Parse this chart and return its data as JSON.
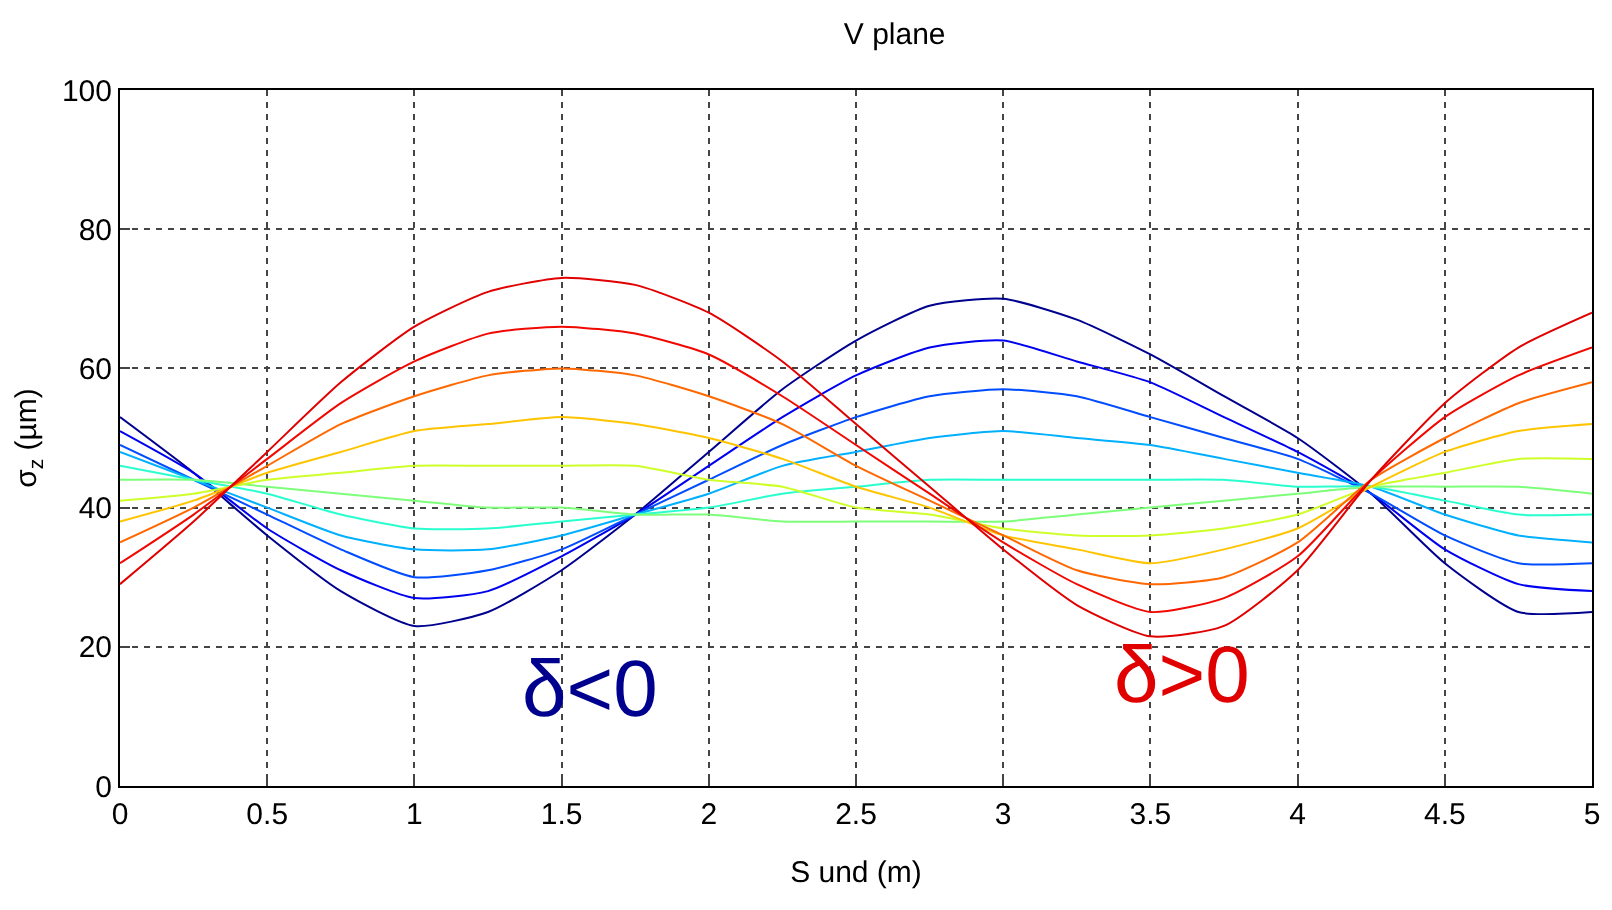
{
  "chart_data": {
    "type": "line",
    "title": "V plane",
    "xlabel": "S und (m)",
    "ylabel": "σ$_{z}$ (µm)",
    "x": [
      0,
      0.25,
      0.5,
      0.75,
      1.0,
      1.25,
      1.5,
      1.75,
      2.0,
      2.25,
      2.5,
      2.75,
      3.0,
      3.25,
      3.5,
      3.75,
      4.0,
      4.25,
      4.5,
      4.75,
      5.0
    ],
    "series": [
      {
        "color": "#00008f",
        "values": [
          53,
          45,
          36,
          28,
          23,
          25,
          31,
          39,
          48,
          57,
          64,
          69,
          70,
          67,
          62,
          56,
          50,
          42,
          32,
          25,
          25
        ]
      },
      {
        "color": "#0000f1",
        "values": [
          51,
          45,
          37,
          31,
          27,
          28,
          33,
          39,
          46,
          53,
          59,
          63,
          64,
          61,
          58,
          53,
          48,
          42,
          34,
          29,
          28
        ]
      },
      {
        "color": "#004cff",
        "values": [
          49,
          44,
          39,
          34,
          30,
          31,
          34,
          39,
          44,
          49,
          53,
          56,
          57,
          56,
          53,
          50,
          47,
          42,
          36,
          32,
          32
        ]
      },
      {
        "color": "#00b0ff",
        "values": [
          48,
          44,
          40,
          36,
          34,
          34,
          36,
          39,
          42,
          46,
          48,
          50,
          51,
          50,
          49,
          47,
          45,
          43,
          39,
          36,
          35
        ]
      },
      {
        "color": "#29ffce",
        "values": [
          46,
          44,
          42,
          39,
          37,
          37,
          38,
          39,
          40,
          42,
          43,
          44,
          44,
          44,
          44,
          44,
          43,
          43,
          41,
          39,
          39
        ]
      },
      {
        "color": "#7dff7a",
        "values": [
          44,
          44,
          43,
          42,
          41,
          40,
          40,
          39,
          39,
          38,
          38,
          38,
          38,
          39,
          40,
          41,
          42,
          43,
          43,
          43,
          42
        ]
      },
      {
        "color": "#ceff29",
        "values": [
          41,
          42,
          44,
          45,
          46,
          46,
          46,
          46,
          44,
          43,
          40,
          39,
          37,
          36,
          36,
          37,
          39,
          43,
          45,
          47,
          47
        ]
      },
      {
        "color": "#ffc400",
        "values": [
          38,
          41,
          45,
          48,
          51,
          52,
          53,
          52,
          50,
          47,
          43,
          40,
          36,
          34,
          32,
          34,
          37,
          43,
          48,
          51,
          52
        ]
      },
      {
        "color": "#ff6800",
        "values": [
          35,
          40,
          46,
          52,
          56,
          59,
          60,
          59,
          56,
          52,
          46,
          41,
          36,
          31,
          29,
          30,
          35,
          44,
          50,
          55,
          58
        ]
      },
      {
        "color": "#f10800",
        "values": [
          32,
          39,
          47,
          55,
          61,
          65,
          66,
          65,
          62,
          56,
          49,
          42,
          35,
          29,
          25,
          27,
          33,
          44,
          53,
          59,
          63
        ]
      },
      {
        "color": "#e00000",
        "values": [
          29,
          38,
          48,
          58,
          66,
          71,
          73,
          72,
          68,
          61,
          52,
          43,
          34,
          26,
          21.5,
          23,
          31,
          44,
          55,
          63,
          68
        ]
      }
    ],
    "annotations": [
      "δ<0",
      "δ>0"
    ],
    "xlim": [
      0,
      5
    ],
    "xticks": [
      0,
      0.5,
      1,
      1.5,
      2,
      2.5,
      3,
      3.5,
      4,
      4.5,
      5
    ],
    "ylim": [
      0,
      100
    ],
    "yticks": [
      0,
      20,
      40,
      60,
      80,
      100
    ],
    "grid": true,
    "marker": "none",
    "line_style": "solid"
  }
}
